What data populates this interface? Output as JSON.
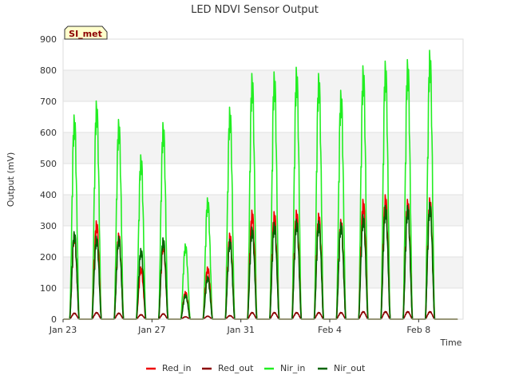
{
  "chart_data": {
    "type": "line",
    "title": "LED NDVI Sensor Output",
    "xlabel": "Time",
    "ylabel": "Output (mV)",
    "badge": "SI_met",
    "ylim": [
      0,
      900
    ],
    "xlim": [
      "2023-01-23",
      "2023-02-10"
    ],
    "yticks": [
      0,
      100,
      200,
      300,
      400,
      500,
      600,
      700,
      800,
      900
    ],
    "xticks": [
      {
        "date": "2023-01-23",
        "label": "Jan 23"
      },
      {
        "date": "2023-01-27",
        "label": "Jan 27"
      },
      {
        "date": "2023-01-31",
        "label": "Jan 31"
      },
      {
        "date": "2023-02-04",
        "label": "Feb 4"
      },
      {
        "date": "2023-02-08",
        "label": "Feb 8"
      }
    ],
    "grid": true,
    "legend_position": "bottom",
    "days": [
      "2023-01-23",
      "2023-01-24",
      "2023-01-25",
      "2023-01-26",
      "2023-01-27",
      "2023-01-28",
      "2023-01-29",
      "2023-01-30",
      "2023-01-31",
      "2023-02-01",
      "2023-02-02",
      "2023-02-03",
      "2023-02-04",
      "2023-02-05",
      "2023-02-06",
      "2023-02-07",
      "2023-02-08",
      "2023-02-09"
    ],
    "series": [
      {
        "name": "Red_in",
        "color": "#ee0000",
        "daily_max": [
          280,
          320,
          280,
          170,
          250,
          90,
          170,
          280,
          355,
          350,
          355,
          345,
          325,
          390,
          405,
          390,
          395,
          0
        ]
      },
      {
        "name": "Red_out",
        "color": "#8b0000",
        "daily_max": [
          20,
          22,
          20,
          15,
          18,
          8,
          10,
          12,
          22,
          22,
          22,
          22,
          22,
          25,
          25,
          25,
          25,
          0
        ]
      },
      {
        "name": "Nir_in",
        "color": "#22ee22",
        "daily_max": [
          665,
          710,
          650,
          535,
          640,
          245,
          395,
          690,
          800,
          805,
          820,
          800,
          745,
          825,
          840,
          845,
          875,
          0
        ]
      },
      {
        "name": "Nir_out",
        "color": "#006400",
        "daily_max": [
          285,
          270,
          270,
          230,
          265,
          80,
          140,
          260,
          300,
          315,
          325,
          320,
          315,
          340,
          370,
          370,
          380,
          0
        ]
      }
    ]
  }
}
